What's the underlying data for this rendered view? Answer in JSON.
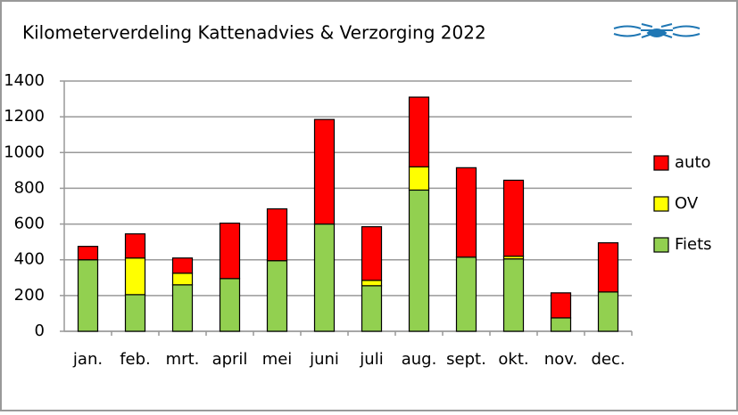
{
  "chart_data": {
    "type": "stacked_bar",
    "title": "Kilometerverdeling Kattenadvies & Verzorging 2022",
    "categories": [
      "jan.",
      "feb.",
      "mrt.",
      "april",
      "mei",
      "juni",
      "juli",
      "aug.",
      "sept.",
      "okt.",
      "nov.",
      "dec."
    ],
    "series": [
      {
        "name": "Fiets",
        "color": "#92d050",
        "values": [
          400,
          205,
          260,
          295,
          395,
          600,
          255,
          790,
          415,
          405,
          75,
          220
        ]
      },
      {
        "name": "OV",
        "color": "#ffff00",
        "values": [
          0,
          205,
          65,
          0,
          0,
          0,
          30,
          130,
          0,
          15,
          0,
          0
        ]
      },
      {
        "name": "auto",
        "color": "#ff0000",
        "values": [
          75,
          135,
          85,
          310,
          290,
          585,
          300,
          390,
          500,
          425,
          140,
          275
        ]
      }
    ],
    "ylim": [
      0,
      1400
    ],
    "yticks": [
      0,
      200,
      400,
      600,
      800,
      1000,
      1200,
      1400
    ],
    "grid": true,
    "legend": "right"
  }
}
